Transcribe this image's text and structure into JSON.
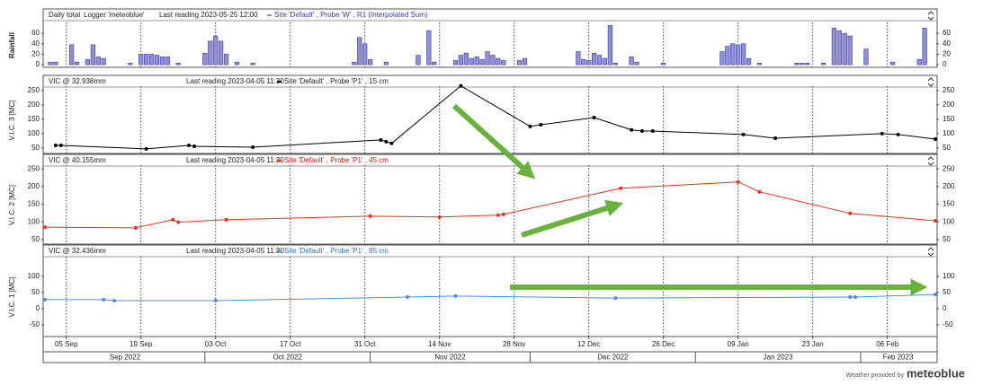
{
  "x_axis": {
    "xlim": [
      "2022-09-01",
      "2023-02-15"
    ],
    "xticks": [
      {
        "value": "2022-09-05",
        "label": "05 Sep"
      },
      {
        "value": "2022-09-19",
        "label": "19 Sep"
      },
      {
        "value": "2022-10-03",
        "label": "03 Oct"
      },
      {
        "value": "2022-10-17",
        "label": "17 Oct"
      },
      {
        "value": "2022-10-31",
        "label": "31 Oct"
      },
      {
        "value": "2022-11-14",
        "label": "14 Nov"
      },
      {
        "value": "2022-11-28",
        "label": "28 Nov"
      },
      {
        "value": "2022-12-12",
        "label": "12 Dec"
      },
      {
        "value": "2022-12-26",
        "label": "26 Dec"
      },
      {
        "value": "2023-01-09",
        "label": "09 Jan"
      },
      {
        "value": "2023-01-23",
        "label": "23 Jan"
      },
      {
        "value": "2023-02-06",
        "label": "06 Feb"
      }
    ],
    "months": [
      {
        "value": "2022-09",
        "label": "Sep 2022"
      },
      {
        "value": "2022-10",
        "label": "Oct 2022"
      },
      {
        "value": "2022-11",
        "label": "Nov 2022"
      },
      {
        "value": "2022-12",
        "label": "Dec 2022"
      },
      {
        "value": "2023-01",
        "label": "Jan 2023"
      },
      {
        "value": "2023-02",
        "label": "Feb 2023"
      }
    ]
  },
  "chart_data": [
    {
      "type": "bar",
      "title": "Daily total",
      "logger": "Logger 'meteoblue'",
      "last_reading": "Last reading 2023-05-25 12:00",
      "ylabel": "Rainfall",
      "ylim": [
        -5,
        79
      ],
      "yticks": [
        0,
        20,
        40,
        60
      ],
      "grid": true,
      "series": [
        {
          "name": "Site 'Default' , Probe 'W' , R1 (Interpolated Sum)",
          "color": "#8f8fdc",
          "x": [
            "2022-09-02",
            "2022-09-03",
            "2022-09-06",
            "2022-09-07",
            "2022-09-09",
            "2022-09-10",
            "2022-09-11",
            "2022-09-12",
            "2022-09-17",
            "2022-09-19",
            "2022-09-20",
            "2022-09-21",
            "2022-09-22",
            "2022-09-23",
            "2022-09-24",
            "2022-09-26",
            "2022-10-01",
            "2022-10-02",
            "2022-10-03",
            "2022-10-04",
            "2022-10-05",
            "2022-10-07",
            "2022-10-10",
            "2022-10-29",
            "2022-10-30",
            "2022-10-31",
            "2022-11-01",
            "2022-11-04",
            "2022-11-10",
            "2022-11-12",
            "2022-11-13",
            "2022-11-17",
            "2022-11-18",
            "2022-11-19",
            "2022-11-20",
            "2022-11-21",
            "2022-11-22",
            "2022-11-23",
            "2022-11-24",
            "2022-11-25",
            "2022-11-26",
            "2022-11-29",
            "2022-11-30",
            "2022-12-10",
            "2022-12-11",
            "2022-12-12",
            "2022-12-13",
            "2022-12-14",
            "2022-12-15",
            "2022-12-16",
            "2022-12-17",
            "2022-12-20",
            "2022-12-21",
            "2022-12-26",
            "2023-01-06",
            "2023-01-07",
            "2023-01-08",
            "2023-01-09",
            "2023-01-10",
            "2023-01-11",
            "2023-01-13",
            "2023-01-20",
            "2023-01-21",
            "2023-01-22",
            "2023-01-25",
            "2023-01-27",
            "2023-01-28",
            "2023-01-29",
            "2023-01-30",
            "2023-02-02",
            "2023-02-07",
            "2023-02-12",
            "2023-02-13"
          ],
          "values": [
            5,
            5,
            38,
            5,
            10,
            38,
            15,
            12,
            3,
            20,
            20,
            20,
            18,
            15,
            15,
            3,
            22,
            45,
            55,
            45,
            20,
            5,
            3,
            5,
            52,
            40,
            10,
            5,
            18,
            65,
            5,
            8,
            18,
            22,
            12,
            15,
            10,
            25,
            18,
            12,
            8,
            8,
            12,
            25,
            10,
            8,
            22,
            18,
            12,
            75,
            3,
            15,
            5,
            3,
            25,
            35,
            40,
            38,
            40,
            12,
            3,
            3,
            3,
            3,
            3,
            70,
            65,
            60,
            55,
            30,
            5,
            10,
            70
          ]
        }
      ]
    },
    {
      "type": "line",
      "title": "VIC @ 32.938mm",
      "last_reading": "Last reading 2023-04-05 11:30",
      "ylabel": "V.I.C. 3 [MC]",
      "ylim": [
        31,
        262
      ],
      "yticks": [
        50,
        100,
        150,
        200,
        250
      ],
      "grid": true,
      "markers": true,
      "series": [
        {
          "name": "Site 'Default' , Probe 'P1' , 15 cm",
          "color": "#000000",
          "x": [
            "2022-09-03",
            "2022-09-04",
            "2022-09-20",
            "2022-09-28",
            "2022-09-29",
            "2022-10-10",
            "2022-11-03",
            "2022-11-04",
            "2022-11-05",
            "2022-11-18",
            "2022-12-01",
            "2022-12-03",
            "2022-12-13",
            "2022-12-20",
            "2022-12-22",
            "2022-12-24",
            "2023-01-10",
            "2023-01-16",
            "2023-02-05",
            "2023-02-08",
            "2023-02-15"
          ],
          "values": [
            59,
            59,
            47,
            59,
            56,
            53,
            78,
            72,
            66,
            266,
            125,
            131,
            156,
            113,
            109,
            109,
            97,
            84,
            100,
            97,
            81
          ]
        }
      ]
    },
    {
      "type": "line",
      "title": "VIC @ 40.155mm",
      "last_reading": "Last reading 2023-04-05 11:30",
      "ylabel": "V.I.C. 2 [MC]",
      "ylim": [
        37,
        258
      ],
      "yticks": [
        50,
        100,
        150,
        200,
        250
      ],
      "grid": true,
      "markers": true,
      "series": [
        {
          "name": "Site 'Default' , Probe 'P1' , 45 cm",
          "color": "#e8321e",
          "x": [
            "2022-09-01",
            "2022-09-18",
            "2022-09-25",
            "2022-09-26",
            "2022-10-05",
            "2022-11-01",
            "2022-11-14",
            "2022-11-25",
            "2022-11-26",
            "2022-12-18",
            "2023-01-09",
            "2023-01-13",
            "2023-01-30",
            "2023-02-15"
          ],
          "values": [
            85,
            83,
            106,
            99,
            106,
            116,
            114,
            119,
            121,
            195,
            213,
            185,
            124,
            103
          ]
        }
      ]
    },
    {
      "type": "line",
      "title": "VIC @ 32.436mm",
      "last_reading": "Last reading 2023-04-05 11:30",
      "ylabel": "V.I.C. 1 [MC]",
      "ylim": [
        -86,
        158
      ],
      "yticks": [
        -50,
        0,
        50,
        100
      ],
      "grid": true,
      "markers": true,
      "series": [
        {
          "name": "Site 'Default' , Probe 'P1' , 85 cm",
          "color": "#4a90d9",
          "x": [
            "2022-09-01",
            "2022-09-12",
            "2022-09-14",
            "2022-10-03",
            "2022-11-08",
            "2022-11-17",
            "2022-12-17",
            "2023-01-30",
            "2023-01-31",
            "2023-02-15"
          ],
          "values": [
            28,
            28,
            25,
            25,
            36,
            39,
            33,
            36,
            36,
            44
          ]
        }
      ]
    }
  ],
  "footer": {
    "prefix": "Weather provided by",
    "brand": "meteoblue"
  }
}
